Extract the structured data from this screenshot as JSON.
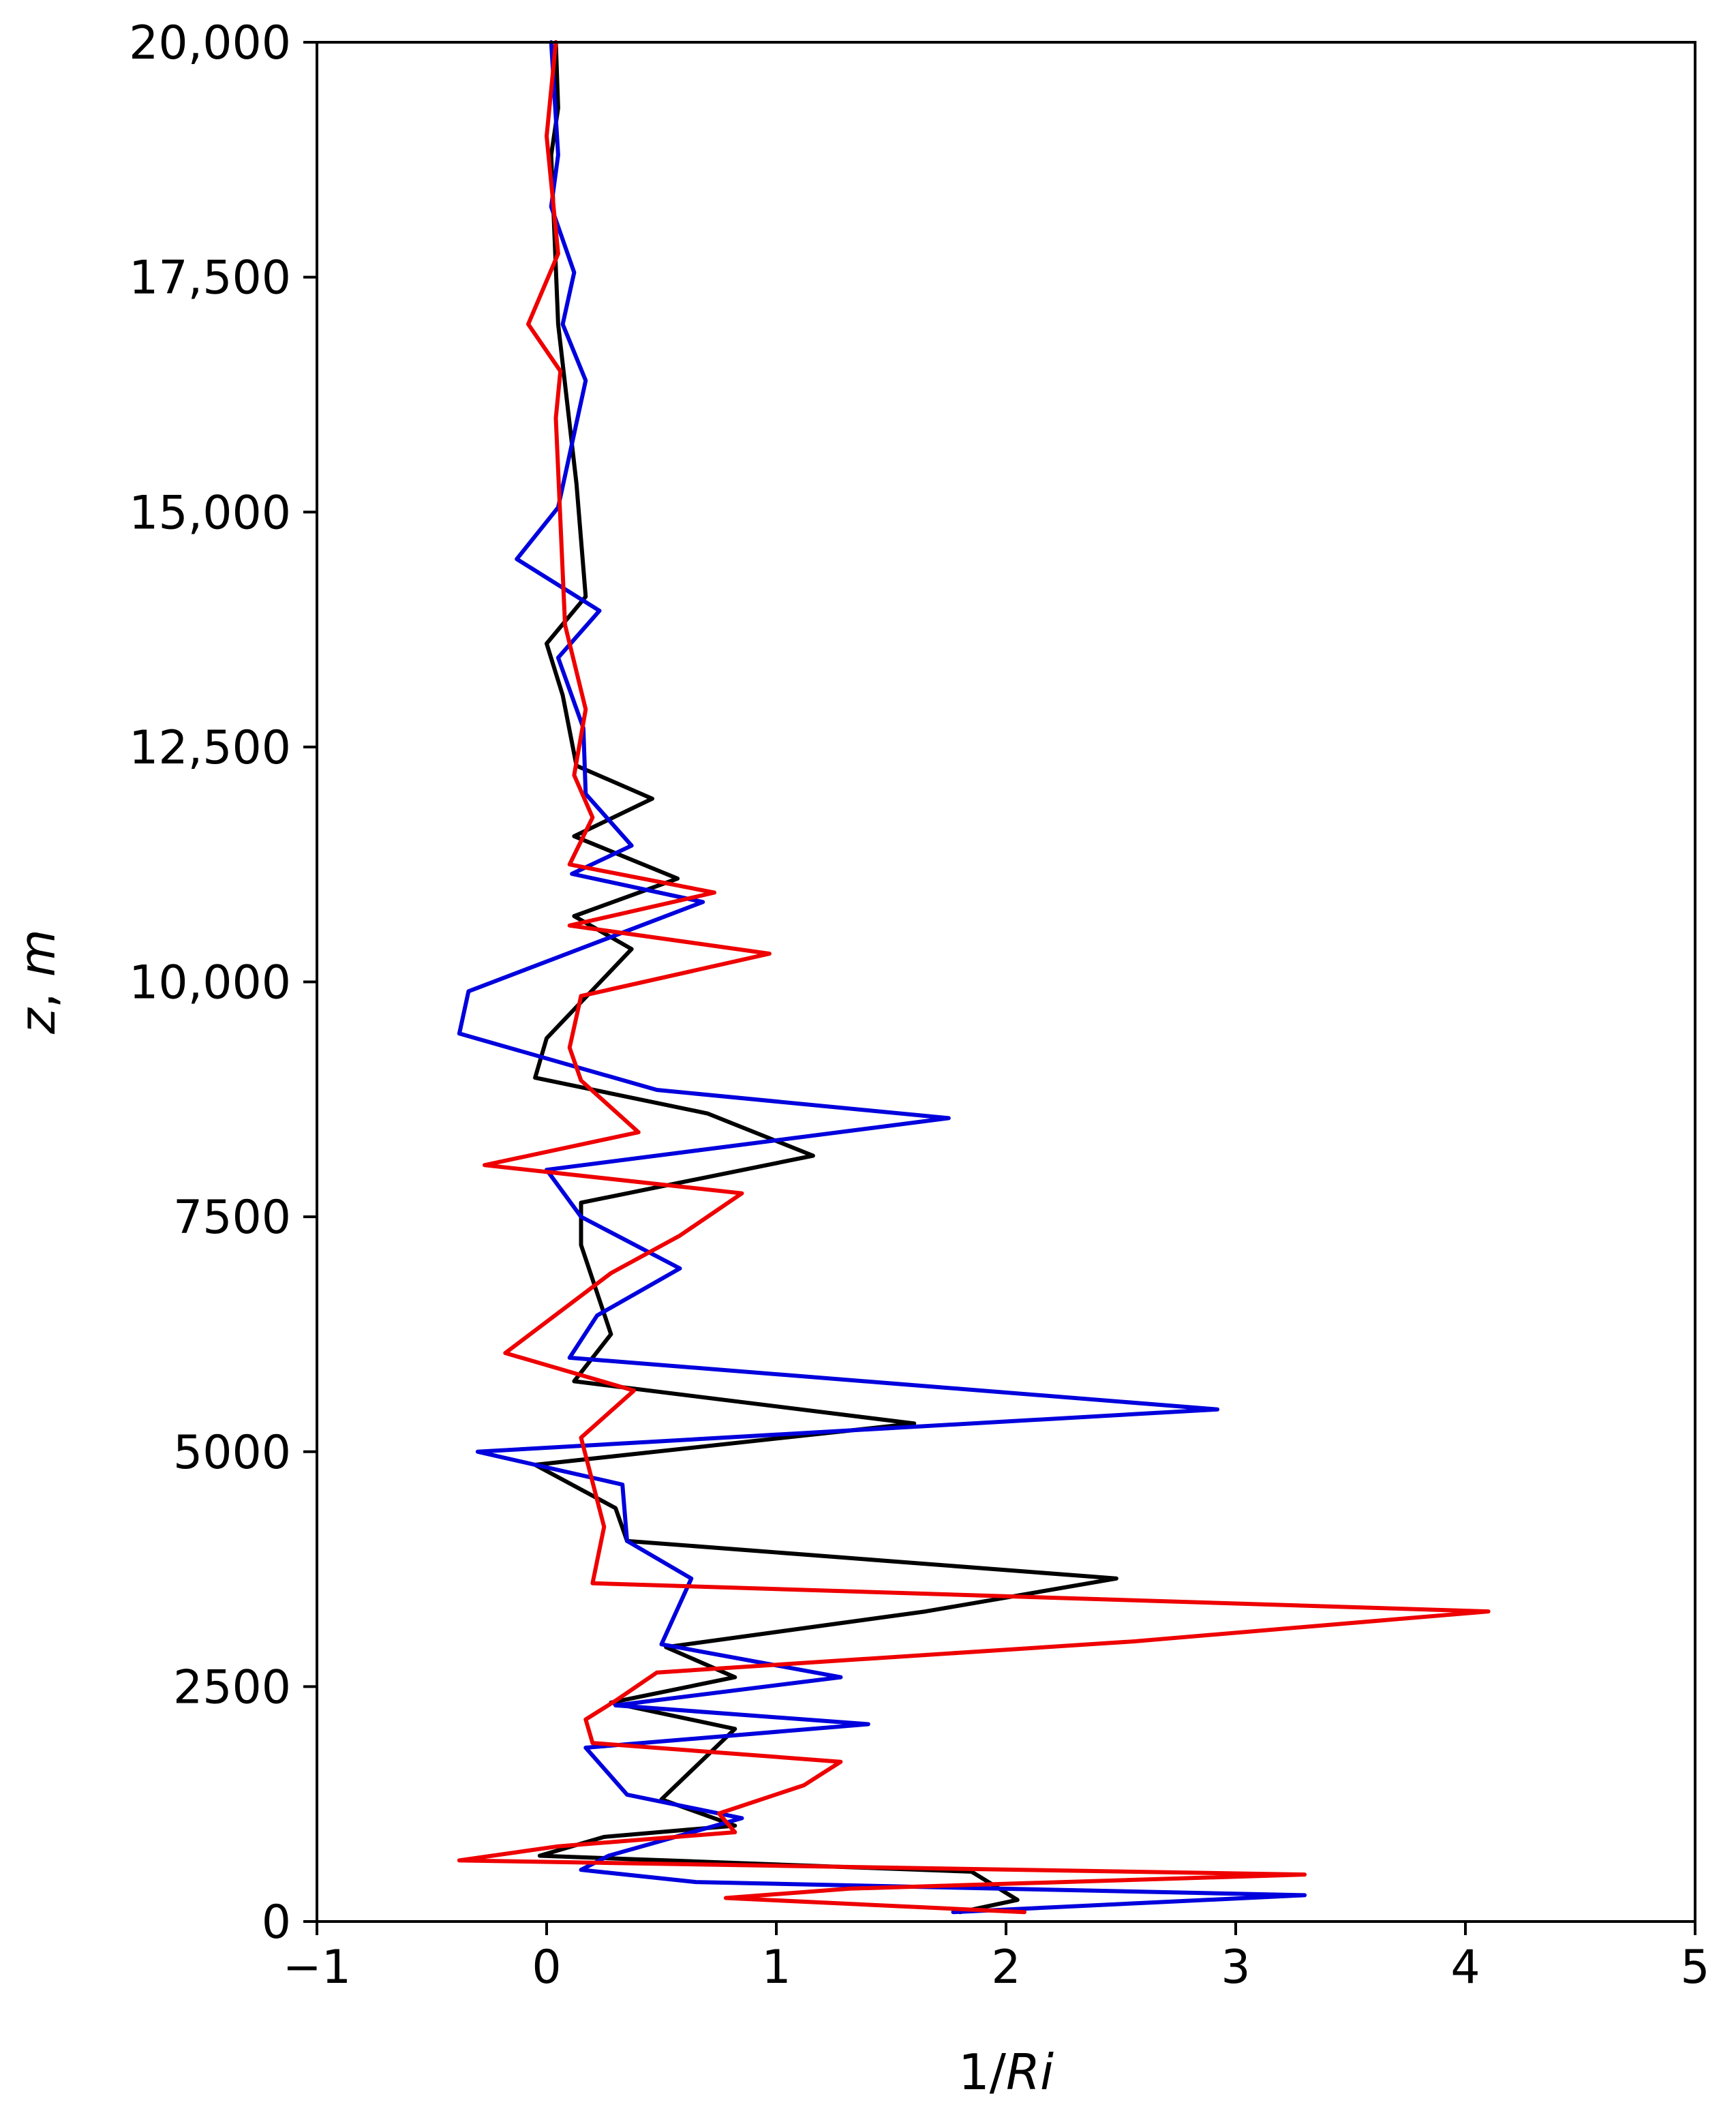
{
  "chart_data": {
    "type": "line",
    "xlabel_parts": [
      "1/",
      "Ri"
    ],
    "ylabel_parts": [
      "z",
      ", ",
      "m"
    ],
    "xlim": [
      -1,
      5
    ],
    "ylim": [
      0,
      20000
    ],
    "xticks": [
      {
        "value": -1,
        "label": "−1"
      },
      {
        "value": 0,
        "label": "0"
      },
      {
        "value": 1,
        "label": "1"
      },
      {
        "value": 2,
        "label": "2"
      },
      {
        "value": 3,
        "label": "3"
      },
      {
        "value": 4,
        "label": "4"
      },
      {
        "value": 5,
        "label": "5"
      }
    ],
    "yticks": [
      {
        "value": 0,
        "label": "0"
      },
      {
        "value": 2500,
        "label": "2500"
      },
      {
        "value": 5000,
        "label": "5000"
      },
      {
        "value": 7500,
        "label": "7500"
      },
      {
        "value": 10000,
        "label": "10,000"
      },
      {
        "value": 12500,
        "label": "12,500"
      },
      {
        "value": 15000,
        "label": "15,000"
      },
      {
        "value": 17500,
        "label": "17,500"
      },
      {
        "value": 20000,
        "label": "20,000"
      }
    ],
    "grid": false,
    "series": [
      {
        "color": "#000000",
        "points": [
          [
            1.8,
            100
          ],
          [
            2.05,
            230
          ],
          [
            1.85,
            530
          ],
          [
            -0.03,
            700
          ],
          [
            0.25,
            900
          ],
          [
            0.82,
            1020
          ],
          [
            0.5,
            1300
          ],
          [
            0.82,
            2050
          ],
          [
            0.28,
            2330
          ],
          [
            0.82,
            2600
          ],
          [
            0.52,
            2920
          ],
          [
            1.65,
            3300
          ],
          [
            2.48,
            3650
          ],
          [
            0.35,
            4050
          ],
          [
            0.3,
            4400
          ],
          [
            -0.05,
            4860
          ],
          [
            1.6,
            5300
          ],
          [
            0.12,
            5750
          ],
          [
            0.28,
            6250
          ],
          [
            0.15,
            7200
          ],
          [
            0.15,
            7650
          ],
          [
            1.16,
            8150
          ],
          [
            0.7,
            8600
          ],
          [
            -0.05,
            8980
          ],
          [
            0.0,
            9400
          ],
          [
            0.37,
            10350
          ],
          [
            0.12,
            10700
          ],
          [
            0.57,
            11100
          ],
          [
            0.12,
            11550
          ],
          [
            0.46,
            11950
          ],
          [
            0.13,
            12300
          ],
          [
            0.07,
            13050
          ],
          [
            0.0,
            13600
          ],
          [
            0.17,
            14100
          ],
          [
            0.13,
            15300
          ],
          [
            0.05,
            17000
          ],
          [
            0.02,
            18800
          ],
          [
            0.05,
            19300
          ],
          [
            0.04,
            20000
          ]
        ]
      },
      {
        "color": "#0000dd",
        "points": [
          [
            1.77,
            100
          ],
          [
            3.3,
            280
          ],
          [
            0.65,
            420
          ],
          [
            0.15,
            550
          ],
          [
            0.27,
            700
          ],
          [
            0.85,
            1100
          ],
          [
            0.35,
            1350
          ],
          [
            0.17,
            1850
          ],
          [
            1.4,
            2100
          ],
          [
            0.3,
            2300
          ],
          [
            1.28,
            2600
          ],
          [
            0.5,
            2950
          ],
          [
            0.63,
            3650
          ],
          [
            0.35,
            4050
          ],
          [
            0.33,
            4650
          ],
          [
            -0.3,
            5000
          ],
          [
            2.92,
            5450
          ],
          [
            0.1,
            6000
          ],
          [
            0.22,
            6450
          ],
          [
            0.58,
            6950
          ],
          [
            0.15,
            7500
          ],
          [
            0.0,
            8000
          ],
          [
            1.75,
            8550
          ],
          [
            0.48,
            8850
          ],
          [
            -0.38,
            9450
          ],
          [
            -0.34,
            9900
          ],
          [
            0.68,
            10850
          ],
          [
            0.11,
            11150
          ],
          [
            0.37,
            11450
          ],
          [
            0.17,
            12000
          ],
          [
            0.16,
            12700
          ],
          [
            0.05,
            13450
          ],
          [
            0.23,
            13950
          ],
          [
            -0.13,
            14500
          ],
          [
            0.05,
            15050
          ],
          [
            0.17,
            16400
          ],
          [
            0.07,
            17000
          ],
          [
            0.12,
            17550
          ],
          [
            0.02,
            18250
          ],
          [
            0.05,
            18800
          ],
          [
            0.02,
            20000
          ]
        ]
      },
      {
        "color": "#ee0000",
        "points": [
          [
            2.08,
            100
          ],
          [
            0.78,
            250
          ],
          [
            1.32,
            350
          ],
          [
            3.3,
            500
          ],
          [
            -0.38,
            650
          ],
          [
            0.05,
            800
          ],
          [
            0.82,
            950
          ],
          [
            0.75,
            1150
          ],
          [
            1.12,
            1450
          ],
          [
            1.28,
            1700
          ],
          [
            0.2,
            1900
          ],
          [
            0.17,
            2150
          ],
          [
            0.3,
            2350
          ],
          [
            0.48,
            2650
          ],
          [
            2.55,
            2980
          ],
          [
            4.1,
            3300
          ],
          [
            0.2,
            3600
          ],
          [
            0.25,
            4200
          ],
          [
            0.15,
            5150
          ],
          [
            0.38,
            5650
          ],
          [
            -0.18,
            6050
          ],
          [
            0.28,
            6900
          ],
          [
            0.58,
            7300
          ],
          [
            0.85,
            7750
          ],
          [
            -0.27,
            8050
          ],
          [
            0.4,
            8400
          ],
          [
            0.15,
            8950
          ],
          [
            0.1,
            9300
          ],
          [
            0.15,
            9850
          ],
          [
            0.97,
            10300
          ],
          [
            0.1,
            10600
          ],
          [
            0.73,
            10950
          ],
          [
            0.1,
            11250
          ],
          [
            0.2,
            11750
          ],
          [
            0.12,
            12200
          ],
          [
            0.17,
            12900
          ],
          [
            0.08,
            13800
          ],
          [
            0.04,
            16000
          ],
          [
            0.06,
            16500
          ],
          [
            -0.08,
            17000
          ],
          [
            0.05,
            17750
          ],
          [
            0.0,
            19000
          ],
          [
            0.04,
            20000
          ]
        ]
      }
    ]
  }
}
